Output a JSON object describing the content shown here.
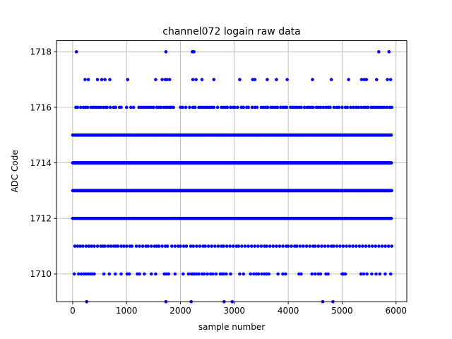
{
  "chart_data": {
    "type": "scatter",
    "title": "channel072 logain raw data",
    "xlabel": "sample number",
    "ylabel": "ADC Code",
    "xlim": [
      -300,
      6200
    ],
    "ylim": [
      1709.0,
      1718.4
    ],
    "x_ticks": [
      0,
      1000,
      2000,
      3000,
      4000,
      5000,
      6000
    ],
    "x_tick_labels": [
      "0",
      "1000",
      "2000",
      "3000",
      "4000",
      "5000",
      "6000"
    ],
    "y_ticks": [
      1710,
      1712,
      1714,
      1716,
      1718
    ],
    "y_tick_labels": [
      "1710",
      "1712",
      "1714",
      "1716",
      "1718"
    ],
    "grid": true,
    "legend": "none",
    "marker_color": "#0000ff",
    "series": [
      {
        "levels": [
          {
            "y": 1718,
            "x": [
              70,
              1730,
              2220,
              2250,
              5680,
              5870
            ]
          },
          {
            "y": 1717,
            "x": [
              230,
              290,
              460,
              540,
              600,
              690,
              1020,
              1540,
              1660,
              1720,
              1750,
              1800,
              2230,
              2290,
              2400,
              2620,
              3100,
              3340,
              3380,
              3610,
              3780,
              3980,
              4450,
              4800,
              5120,
              5360,
              5410,
              5450,
              5640,
              5840,
              5900
            ]
          },
          {
            "y": 1716,
            "x": [
              60,
              90,
              150,
              200,
              240,
              280,
              340,
              380,
              410,
              440,
              480,
              520,
              570,
              610,
              640,
              700,
              760,
              800,
              870,
              900,
              1000,
              1080,
              1130,
              1230,
              1270,
              1300,
              1340,
              1380,
              1420,
              1460,
              1500,
              1560,
              1600,
              1640,
              1690,
              1730,
              1760,
              1800,
              1830,
              1870,
              2000,
              2040,
              2100,
              2170,
              2230,
              2270,
              2340,
              2380,
              2420,
              2460,
              2500,
              2540,
              2580,
              2620,
              2690,
              2760,
              2800,
              2840,
              2870,
              2930,
              2980,
              3010,
              3060,
              3130,
              3170,
              3230,
              3260,
              3330,
              3380,
              3420,
              3500,
              3540,
              3580,
              3620,
              3680,
              3720,
              3760,
              3800,
              3860,
              3900,
              3940,
              3970,
              4040,
              4080,
              4120,
              4160,
              4200,
              4240,
              4300,
              4350,
              4380,
              4420,
              4460,
              4520,
              4560,
              4600,
              4650,
              4700,
              4740,
              4780,
              4850,
              4900,
              4940,
              5000,
              5060,
              5100,
              5160,
              5210,
              5260,
              5300,
              5350,
              5400,
              5440,
              5480,
              5540,
              5580,
              5620,
              5660,
              5700,
              5740,
              5780,
              5830,
              5880,
              5920
            ]
          },
          {
            "y": 1711,
            "x": [
              40,
              90,
              140,
              190,
              250,
              300,
              350,
              400,
              460,
              520,
              560,
              600,
              660,
              710,
              760,
              800,
              840,
              900,
              950,
              1000,
              1060,
              1100,
              1180,
              1240,
              1300,
              1360,
              1400,
              1460,
              1520,
              1560,
              1600,
              1660,
              1720,
              1760,
              1840,
              1900,
              1960,
              2000,
              2060,
              2110,
              2190,
              2240,
              2300,
              2360,
              2420,
              2460,
              2520,
              2580,
              2640,
              2700,
              2760,
              2800,
              2860,
              2920,
              2980,
              3040,
              3080,
              3140,
              3200,
              3260,
              3320,
              3380,
              3440,
              3500,
              3560,
              3600,
              3660,
              3720,
              3780,
              3840,
              3900,
              3960,
              4000,
              4060,
              4120,
              4160,
              4220,
              4280,
              4340,
              4400,
              4460,
              4500,
              4560,
              4620,
              4680,
              4740,
              4800,
              4840,
              4900,
              4960,
              5020,
              5080,
              5140,
              5200,
              5260,
              5320,
              5380,
              5440,
              5500,
              5560,
              5620,
              5680,
              5740,
              5800,
              5860,
              5920
            ]
          },
          {
            "y": 1710,
            "x": [
              30,
              110,
              160,
              210,
              250,
              290,
              330,
              360,
              400,
              580,
              680,
              790,
              900,
              1010,
              1050,
              1200,
              1240,
              1330,
              1460,
              1540,
              1700,
              1740,
              1780,
              1900,
              2050,
              2150,
              2200,
              2230,
              2260,
              2300,
              2340,
              2400,
              2440,
              2500,
              2560,
              2600,
              2660,
              2740,
              2770,
              2800,
              2850,
              2930,
              3100,
              3170,
              3300,
              3360,
              3410,
              3450,
              3510,
              3560,
              3600,
              3640,
              3810,
              3900,
              3950,
              4200,
              4240,
              4440,
              4500,
              4560,
              4600,
              4700,
              4740,
              5000,
              5030,
              5060,
              5350,
              5400,
              5460,
              5550,
              5630,
              5700,
              5800,
              5900
            ]
          },
          {
            "y": 1709,
            "x": [
              260,
              1730,
              2200,
              2810,
              2960,
              4640,
              4830
            ]
          }
        ],
        "dense_levels": [
          {
            "y": 1715,
            "x_start": 0,
            "x_end": 5920,
            "step": 9
          },
          {
            "y": 1714,
            "x_start": 0,
            "x_end": 5920,
            "step": 7
          },
          {
            "y": 1713,
            "x_start": 0,
            "x_end": 5920,
            "step": 8
          },
          {
            "y": 1712,
            "x_start": 0,
            "x_end": 5920,
            "step": 9
          }
        ]
      }
    ]
  }
}
